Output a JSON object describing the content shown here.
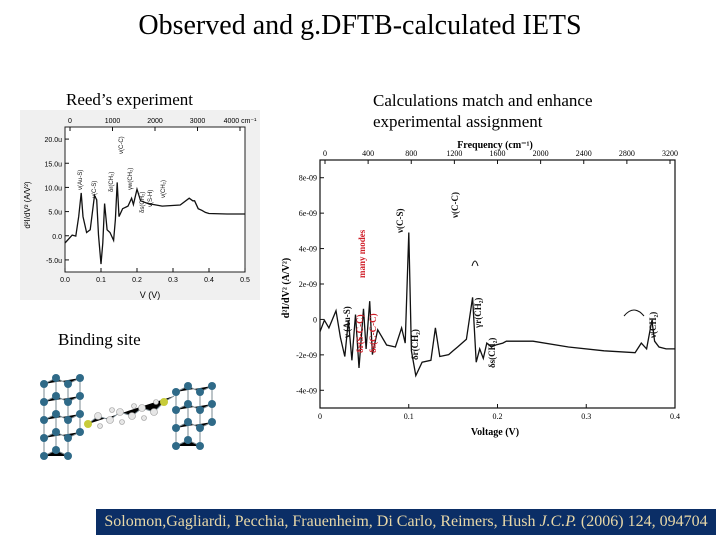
{
  "slide": {
    "title": "Observed and g.DFTB-calculated IETS",
    "reed_label": "Reed’s experiment",
    "calc_label": "Calculations match and enhance\nexperimental assignment",
    "binding_label": "Binding site",
    "citation": {
      "authors": "Solomon,Gagliardi, Pecchia, Frauenheim, Di Carlo, Reimers, Hush ",
      "journal": "J.C.P.",
      "rest": " (2006) 124, 094704"
    }
  },
  "chart_data": [
    {
      "type": "line",
      "xlabel": "V (V)",
      "ylabel": "d²I/dV² (A/V²)",
      "x_ticks": [
        "0.0",
        "0.1",
        "0.2",
        "0.3",
        "0.4",
        "0.5"
      ],
      "y_ticks": [
        "20.0u",
        "15.0u",
        "10.0u",
        "5.0u",
        "0.0",
        "-5.0u"
      ],
      "top_ticks": [
        "0",
        "1000",
        "2000",
        "3000",
        "4000 cm⁻¹"
      ],
      "xlim": [
        0,
        0.5
      ],
      "ylim": [
        -6.5,
        21
      ],
      "series": [
        {
          "values": [
            [
              0.0,
              -1.0
            ],
            [
              0.02,
              0.5
            ],
            [
              0.03,
              0.3
            ],
            [
              0.038,
              4.0
            ],
            [
              0.045,
              8.5
            ],
            [
              0.05,
              4.0
            ],
            [
              0.06,
              1.0
            ],
            [
              0.07,
              1.5
            ],
            [
              0.082,
              8.0
            ],
            [
              0.088,
              7.2
            ],
            [
              0.093,
              0.5
            ],
            [
              0.1,
              -5.0
            ],
            [
              0.105,
              -1.0
            ],
            [
              0.11,
              6.5
            ],
            [
              0.117,
              1.5
            ],
            [
              0.125,
              1.0
            ],
            [
              0.135,
              -0.5
            ],
            [
              0.14,
              3.5
            ],
            [
              0.145,
              10.5
            ],
            [
              0.15,
              4.0
            ],
            [
              0.16,
              5.5
            ],
            [
              0.175,
              6.0
            ],
            [
              0.185,
              7.5
            ],
            [
              0.19,
              6.3
            ],
            [
              0.2,
              9.2
            ],
            [
              0.21,
              7.0
            ],
            [
              0.23,
              6.5
            ],
            [
              0.27,
              6.0
            ],
            [
              0.32,
              6.2
            ],
            [
              0.345,
              7.5
            ],
            [
              0.355,
              7.0
            ],
            [
              0.36,
              7.0
            ],
            [
              0.37,
              5.5
            ],
            [
              0.38,
              5.2
            ],
            [
              0.39,
              4.8
            ],
            [
              0.4,
              4.6
            ],
            [
              0.45,
              4.5
            ],
            [
              0.5,
              4.5
            ]
          ]
        }
      ],
      "annotations": [
        "ν(Au-S)",
        "ν(C-S)",
        "δr(CH₂)",
        "ν(C-C)",
        "γw(CH₂)",
        "δs(CH₂)",
        "ν(S-H)",
        "ν(CH₂)"
      ]
    },
    {
      "type": "line",
      "title": "Frequency (cm⁻¹)",
      "xlabel": "Voltage (V)",
      "ylabel": "d²I/dV² (A/V²)",
      "x_ticks": [
        "0",
        "0.1",
        "0.2",
        "0.3",
        "0.4"
      ],
      "y_ticks": [
        "8e-09",
        "6e-09",
        "4e-09",
        "2e-09",
        "0",
        "-2e-09",
        "-4e-09"
      ],
      "top_ticks": [
        "0",
        "400",
        "800",
        "1200",
        "1600",
        "2000",
        "2400",
        "2800",
        "3200"
      ],
      "xlim": [
        0,
        0.4
      ],
      "ylim": [
        -4,
        9
      ],
      "series": [
        {
          "values": [
            [
              0.0,
              0.0
            ],
            [
              0.005,
              0.6
            ],
            [
              0.01,
              0.2
            ],
            [
              0.018,
              1.1
            ],
            [
              0.023,
              -0.3
            ],
            [
              0.028,
              -1.3
            ],
            [
              0.032,
              0.6
            ],
            [
              0.036,
              -1.5
            ],
            [
              0.04,
              0.9
            ],
            [
              0.044,
              -1.9
            ],
            [
              0.049,
              1.2
            ],
            [
              0.052,
              -0.9
            ],
            [
              0.056,
              1.6
            ],
            [
              0.059,
              -1.2
            ],
            [
              0.065,
              0.1
            ],
            [
              0.075,
              -0.7
            ],
            [
              0.085,
              -0.8
            ],
            [
              0.092,
              0.2
            ],
            [
              0.096,
              -0.6
            ],
            [
              0.1,
              5.2
            ],
            [
              0.103,
              -1.0
            ],
            [
              0.108,
              -2.3
            ],
            [
              0.115,
              -1.6
            ],
            [
              0.125,
              -1.5
            ],
            [
              0.13,
              0.2
            ],
            [
              0.135,
              -1.3
            ],
            [
              0.145,
              -1.2
            ],
            [
              0.15,
              -1.0
            ],
            [
              0.155,
              -0.8
            ],
            [
              0.16,
              -0.6
            ],
            [
              0.165,
              -0.4
            ],
            [
              0.172,
              1.8
            ],
            [
              0.176,
              -1.6
            ],
            [
              0.18,
              -0.9
            ],
            [
              0.184,
              -1.4
            ],
            [
              0.188,
              -0.6
            ],
            [
              0.193,
              -0.8
            ],
            [
              0.198,
              -0.7
            ],
            [
              0.206,
              -0.6
            ],
            [
              0.21,
              -0.5
            ],
            [
              0.24,
              -0.5
            ],
            [
              0.28,
              -0.8
            ],
            [
              0.32,
              -1.0
            ],
            [
              0.355,
              -1.1
            ],
            [
              0.362,
              -0.6
            ],
            [
              0.368,
              -0.9
            ],
            [
              0.374,
              0.6
            ],
            [
              0.377,
              -0.5
            ],
            [
              0.382,
              -0.8
            ],
            [
              0.39,
              -0.9
            ],
            [
              0.4,
              -0.9
            ]
          ]
        }
      ],
      "annotations": [
        "many modes",
        "ν (Au-S)",
        "δr(S-C-C)",
        "δs(C-C-C)",
        "ν(C-S)",
        "δr(CH₂)",
        "ν(C-C)",
        "γr(CH₂)",
        "δs(CH₂)",
        "ν(CH₂)"
      ]
    }
  ],
  "colors": {
    "citation_bg": "#0b2e66",
    "citation_text": "#e8d8a8",
    "red_annotation": "#d0202a",
    "atom_blue": "#2f6a88",
    "atom_yellow": "#c8cc3a",
    "atom_white": "#e6e6e6"
  }
}
